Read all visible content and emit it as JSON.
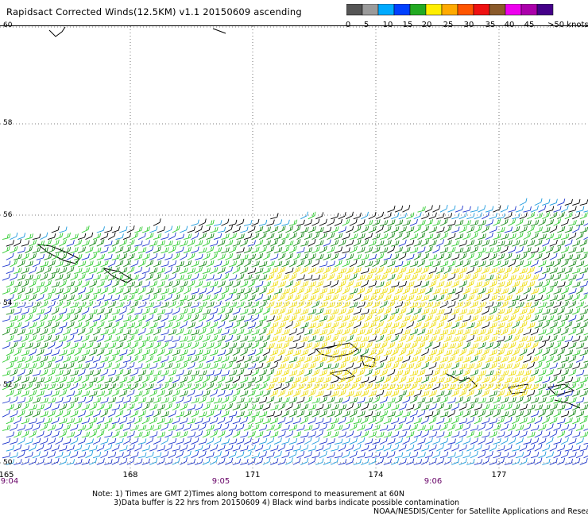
{
  "title": "Rapidsact Corrected Winds(12.5KM) v1.1 20150609 ascending",
  "colorbar": {
    "colors": [
      "#555555",
      "#9b9b9b",
      "#00aaff",
      "#0040ff",
      "#22aa22",
      "#ffee00",
      "#ffaa00",
      "#ff5500",
      "#ee1111",
      "#8a5a2a",
      "#ee00ee",
      "#aa00aa",
      "#440088"
    ],
    "labels": [
      "0",
      "5",
      "10",
      "15",
      "20",
      "25",
      "30",
      "35",
      "40",
      "45",
      ">50 knots"
    ]
  },
  "latitudes": [
    "60",
    "58",
    "56",
    "54",
    "52",
    "50"
  ],
  "longitudes": [
    "165",
    "168",
    "171",
    "174",
    "177"
  ],
  "times": [
    "9:04",
    "9:05",
    "9:06"
  ],
  "notes": {
    "line1": "Note: 1) Times are GMT 2)Times along bottom correspond to measurement at 60N",
    "line2": "3)Data buffer is 22 hrs from 20150609 4) Black wind barbs indicate possible contamination",
    "line3": "NOAA/NESDIS/Center for Satellite Applications and Resea"
  }
}
